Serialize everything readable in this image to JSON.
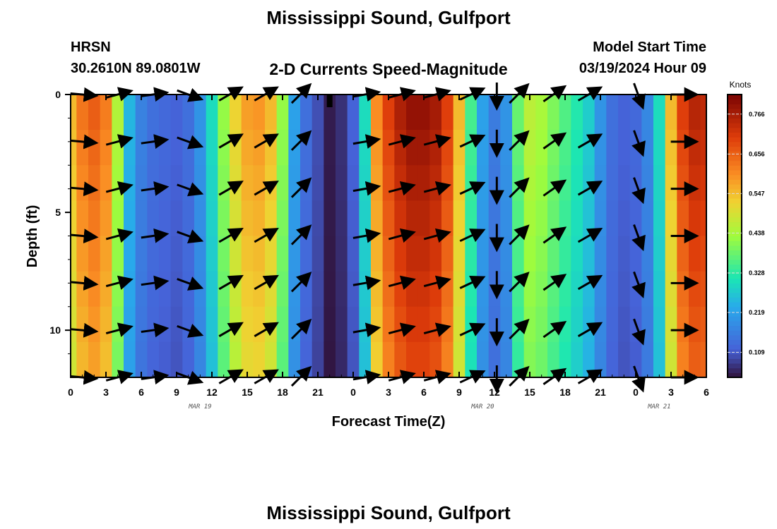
{
  "page": {
    "title": "Mississippi Sound, Gulfport",
    "station_code": "HRSN",
    "coords": "30.2610N  89.0801W",
    "subtitle": "2-D Currents Speed-Magnitude",
    "model_start_label": "Model Start Time",
    "model_start_value": "03/19/2024 Hour 09",
    "footer_title": "Mississippi Sound, Gulfport"
  },
  "chart_data": {
    "type": "heatmap",
    "xlabel": "Forecast Time(Z)",
    "ylabel": "Depth (ft)",
    "x_tick_labels": [
      "0",
      "3",
      "6",
      "9",
      "12",
      "15",
      "18",
      "21",
      "0",
      "3",
      "6",
      "9",
      "12",
      "15",
      "18",
      "21",
      "0",
      "3",
      "6"
    ],
    "x_range_hours": [
      0,
      54
    ],
    "date_labels": [
      {
        "hour": 11,
        "text": "MAR 19"
      },
      {
        "hour": 35,
        "text": "MAR 20"
      },
      {
        "hour": 50,
        "text": "MAR 21"
      }
    ],
    "y_range_ft": [
      0,
      12
    ],
    "y_tick_labels": [
      0,
      5,
      10
    ],
    "colorbar": {
      "title": "Knots",
      "min": 0.04,
      "max": 0.82,
      "labels": [
        "0.766",
        "0.656",
        "0.547",
        "0.438",
        "0.328",
        "0.219",
        "0.109"
      ],
      "label_values": [
        0.766,
        0.656,
        0.547,
        0.438,
        0.328,
        0.219,
        0.109
      ]
    },
    "speed_profile_knots": [
      {
        "hour": 0,
        "speed": 0.55
      },
      {
        "hour": 1,
        "speed": 0.63
      },
      {
        "hour": 2,
        "speed": 0.66
      },
      {
        "hour": 3,
        "speed": 0.62
      },
      {
        "hour": 4,
        "speed": 0.45
      },
      {
        "hour": 5,
        "speed": 0.25
      },
      {
        "hour": 6,
        "speed": 0.17
      },
      {
        "hour": 7,
        "speed": 0.14
      },
      {
        "hour": 8,
        "speed": 0.13
      },
      {
        "hour": 9,
        "speed": 0.12
      },
      {
        "hour": 10,
        "speed": 0.14
      },
      {
        "hour": 11,
        "speed": 0.2
      },
      {
        "hour": 12,
        "speed": 0.3
      },
      {
        "hour": 13,
        "speed": 0.42
      },
      {
        "hour": 14,
        "speed": 0.52
      },
      {
        "hour": 15,
        "speed": 0.58
      },
      {
        "hour": 16,
        "speed": 0.59
      },
      {
        "hour": 17,
        "speed": 0.55
      },
      {
        "hour": 18,
        "speed": 0.42
      },
      {
        "hour": 19,
        "speed": 0.22
      },
      {
        "hour": 20,
        "speed": 0.14
      },
      {
        "hour": 21,
        "speed": 0.1
      },
      {
        "hour": 22,
        "speed": 0.05
      },
      {
        "hour": 23,
        "speed": 0.07
      },
      {
        "hour": 24,
        "speed": 0.12
      },
      {
        "hour": 25,
        "speed": 0.3
      },
      {
        "hour": 26,
        "speed": 0.6
      },
      {
        "hour": 27,
        "speed": 0.7
      },
      {
        "hour": 28,
        "speed": 0.76
      },
      {
        "hour": 29,
        "speed": 0.79
      },
      {
        "hour": 30,
        "speed": 0.79
      },
      {
        "hour": 31,
        "speed": 0.77
      },
      {
        "hour": 32,
        "speed": 0.7
      },
      {
        "hour": 33,
        "speed": 0.55
      },
      {
        "hour": 34,
        "speed": 0.35
      },
      {
        "hour": 35,
        "speed": 0.22
      },
      {
        "hour": 36,
        "speed": 0.16
      },
      {
        "hour": 37,
        "speed": 0.2
      },
      {
        "hour": 38,
        "speed": 0.38
      },
      {
        "hour": 39,
        "speed": 0.46
      },
      {
        "hour": 40,
        "speed": 0.44
      },
      {
        "hour": 41,
        "speed": 0.4
      },
      {
        "hour": 42,
        "speed": 0.36
      },
      {
        "hour": 43,
        "speed": 0.32
      },
      {
        "hour": 44,
        "speed": 0.28
      },
      {
        "hour": 45,
        "speed": 0.2
      },
      {
        "hour": 46,
        "speed": 0.14
      },
      {
        "hour": 47,
        "speed": 0.12
      },
      {
        "hour": 48,
        "speed": 0.13
      },
      {
        "hour": 49,
        "speed": 0.18
      },
      {
        "hour": 50,
        "speed": 0.3
      },
      {
        "hour": 51,
        "speed": 0.55
      },
      {
        "hour": 52,
        "speed": 0.7
      },
      {
        "hour": 53,
        "speed": 0.75
      },
      {
        "hour": 54,
        "speed": 0.74
      }
    ],
    "vectors": [
      {
        "hour": 1,
        "dir": 95
      },
      {
        "hour": 4,
        "dir": 75
      },
      {
        "hour": 7,
        "dir": 82
      },
      {
        "hour": 10,
        "dir": 110
      },
      {
        "hour": 13.5,
        "dir": 60
      },
      {
        "hour": 16.5,
        "dir": 60
      },
      {
        "hour": 19.5,
        "dir": 45
      },
      {
        "hour": 25,
        "dir": 80
      },
      {
        "hour": 28,
        "dir": 75
      },
      {
        "hour": 31,
        "dir": 75
      },
      {
        "hour": 34,
        "dir": 65
      },
      {
        "hour": 36.2,
        "dir": 180
      },
      {
        "hour": 38,
        "dir": 45
      },
      {
        "hour": 41,
        "dir": 55
      },
      {
        "hour": 44,
        "dir": 60
      },
      {
        "hour": 48.2,
        "dir": 160
      },
      {
        "hour": 52,
        "dir": 90
      }
    ],
    "vector_depths_ft": [
      0,
      2,
      4,
      6,
      8,
      10,
      12
    ]
  }
}
